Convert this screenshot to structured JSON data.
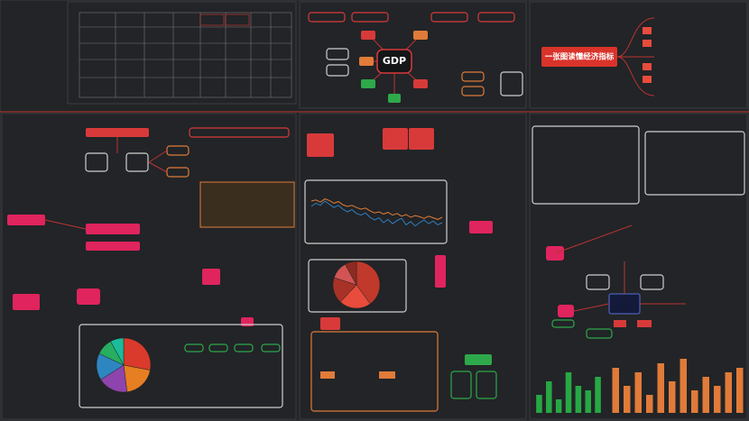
{
  "header": {
    "title": "一张图读懂经济指标"
  },
  "center_node": "GDP",
  "pie_center": {
    "values": [
      40,
      22,
      18,
      12,
      8
    ],
    "colors": [
      "#c0392b",
      "#e74c3c",
      "#a93226",
      "#d35454",
      "#8e2a22"
    ]
  },
  "pie_left": {
    "values": [
      28,
      20,
      18,
      16,
      10,
      8
    ],
    "colors": [
      "#d93a2b",
      "#e67e22",
      "#8e44ad",
      "#2e86c1",
      "#27ae60",
      "#1abc9c"
    ]
  },
  "line_chart": {
    "ylim": [
      0,
      100
    ],
    "series": [
      {
        "color": "#e07b39",
        "values": [
          70,
          72,
          68,
          74,
          71,
          66,
          69,
          63,
          60,
          62,
          58,
          55,
          57,
          52,
          48,
          50,
          46,
          49,
          44,
          47,
          42,
          45,
          40,
          43,
          41,
          38,
          42,
          39,
          36,
          40
        ]
      },
      {
        "color": "#2f7fc1",
        "values": [
          60,
          66,
          62,
          70,
          64,
          58,
          62,
          55,
          50,
          54,
          47,
          44,
          48,
          40,
          35,
          39,
          30,
          36,
          28,
          34,
          38,
          26,
          32,
          24,
          30,
          35,
          28,
          33,
          26,
          30
        ]
      }
    ]
  },
  "bar_chart": {
    "ylim": [
      0,
      70
    ],
    "series": [
      {
        "color": "#27a844",
        "values": [
          20,
          35,
          15,
          45,
          30,
          25,
          40
        ]
      },
      {
        "color": "#e07b39",
        "values": [
          50,
          30,
          45,
          20,
          55,
          35,
          60,
          25,
          40,
          30,
          45,
          50
        ]
      }
    ]
  }
}
